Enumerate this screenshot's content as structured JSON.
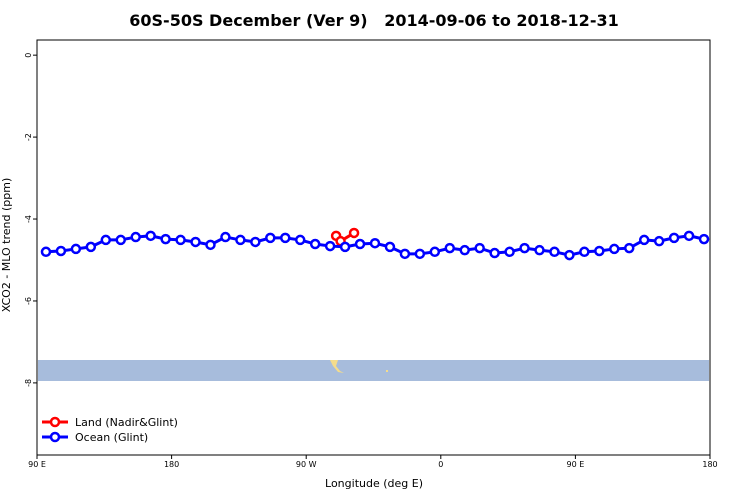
{
  "chart_data": {
    "type": "line",
    "title": "60S-50S December (Ver 9)   2014-09-06 to 2018-12-31",
    "x_label": "Longitude (deg E)",
    "y_label": "XCO2 - MLO trend (ppm)",
    "xlim": [
      90,
      540
    ],
    "xticks": [
      {
        "value": 90,
        "label": "90 E"
      },
      {
        "value": 180,
        "label": "180"
      },
      {
        "value": 270,
        "label": "90 W"
      },
      {
        "value": 360,
        "label": "0"
      },
      {
        "value": 450,
        "label": "90 E"
      },
      {
        "value": 540,
        "label": "180"
      }
    ],
    "ylim": [
      -9.76,
      0.37
    ],
    "yticks": [
      0,
      -2,
      -4,
      -6,
      -8
    ],
    "legend_position": "bottom-left",
    "series": [
      {
        "name": "Land (Nadir&Glint)",
        "color": "#ff0000",
        "x": [
          290,
          293,
          302
        ],
        "values": [
          -4.41,
          -4.54,
          -4.34
        ]
      },
      {
        "name": "Ocean (Glint)",
        "color": "#0000ff",
        "x": [
          96,
          106,
          116,
          126,
          136,
          146,
          156,
          166,
          176,
          186,
          196,
          206,
          216,
          226,
          236,
          246,
          256,
          266,
          276,
          286,
          296,
          306,
          316,
          326,
          336,
          346,
          356,
          366,
          376,
          386,
          396,
          406,
          416,
          426,
          436,
          446,
          456,
          466,
          476,
          486,
          496,
          506,
          516,
          526,
          536
        ],
        "values": [
          -4.8,
          -4.78,
          -4.73,
          -4.68,
          -4.51,
          -4.51,
          -4.44,
          -4.41,
          -4.49,
          -4.51,
          -4.56,
          -4.63,
          -4.44,
          -4.51,
          -4.56,
          -4.46,
          -4.46,
          -4.51,
          -4.61,
          -4.66,
          -4.68,
          -4.61,
          -4.59,
          -4.68,
          -4.85,
          -4.85,
          -4.8,
          -4.71,
          -4.76,
          -4.71,
          -4.83,
          -4.8,
          -4.71,
          -4.76,
          -4.8,
          -4.88,
          -4.8,
          -4.78,
          -4.73,
          -4.71,
          -4.51,
          -4.54,
          -4.46,
          -4.41,
          -4.49
        ]
      }
    ]
  }
}
